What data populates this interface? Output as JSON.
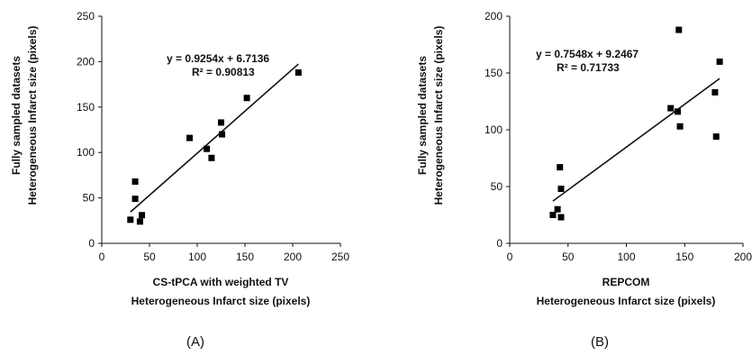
{
  "chart_data": [
    {
      "type": "scatter",
      "panel_label": "(A)",
      "ylabel_lines": [
        "Fully sampled datasets",
        "Heterogeneous Infarct size (pixels)"
      ],
      "xlabel_lines": [
        "CS-tPCA with weighted TV",
        "Heterogeneous Infarct size (pixels)"
      ],
      "xlim": [
        0,
        250
      ],
      "ylim": [
        0,
        250
      ],
      "xticks": [
        0,
        50,
        100,
        150,
        200,
        250
      ],
      "yticks": [
        0,
        50,
        100,
        150,
        200,
        250
      ],
      "equation": "y = 0.9254x + 6.7136",
      "r_squared": "R² = 0.90813",
      "trendline": {
        "slope": 0.9254,
        "intercept": 6.7136,
        "x_range": [
          30,
          206
        ]
      },
      "series": [
        {
          "marker": "square",
          "color": "#000000",
          "points": [
            [
              30,
              26
            ],
            [
              35,
              68
            ],
            [
              35,
              49
            ],
            [
              40,
              24
            ],
            [
              42,
              31
            ],
            [
              92,
              116
            ],
            [
              110,
              104
            ],
            [
              115,
              94
            ],
            [
              125,
              133
            ],
            [
              126,
              120
            ],
            [
              152,
              160
            ],
            [
              206,
              188
            ]
          ]
        }
      ]
    },
    {
      "type": "scatter",
      "panel_label": "(B)",
      "ylabel_lines": [
        "Fully sampled datasets",
        "Heterogeneous Infarct size (pixels)"
      ],
      "xlabel_lines": [
        "REPCOM",
        "Heterogeneous Infarct size (pixels)"
      ],
      "xlim": [
        0,
        200
      ],
      "ylim": [
        0,
        200
      ],
      "xticks": [
        0,
        50,
        100,
        150,
        200
      ],
      "yticks": [
        0,
        50,
        100,
        150,
        200
      ],
      "equation": "y = 0.7548x + 9.2467",
      "r_squared": "R² = 0.71733",
      "trendline": {
        "slope": 0.7548,
        "intercept": 9.2467,
        "x_range": [
          37,
          180
        ]
      },
      "series": [
        {
          "marker": "square",
          "color": "#000000",
          "points": [
            [
              37,
              25
            ],
            [
              41,
              30
            ],
            [
              43,
              67
            ],
            [
              44,
              48
            ],
            [
              44,
              23
            ],
            [
              138,
              119
            ],
            [
              144,
              116
            ],
            [
              145,
              188
            ],
            [
              146,
              103
            ],
            [
              176,
              133
            ],
            [
              177,
              94
            ],
            [
              180,
              160
            ]
          ]
        }
      ]
    }
  ]
}
